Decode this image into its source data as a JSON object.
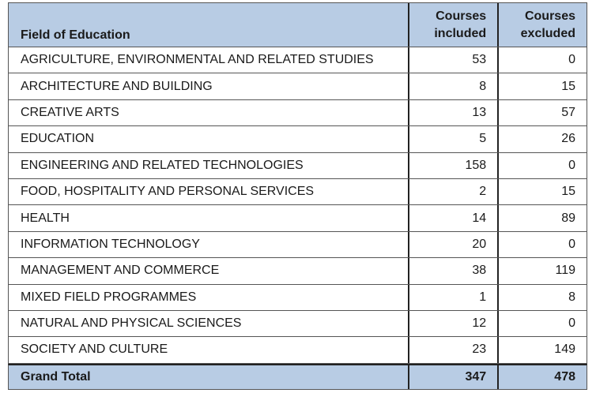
{
  "table": {
    "headers": {
      "field": "Field of Education",
      "included": "Courses\nincluded",
      "excluded": "Courses\nexcluded"
    },
    "rows": [
      {
        "field": "AGRICULTURE, ENVIRONMENTAL AND RELATED STUDIES",
        "included": "53",
        "excluded": "0"
      },
      {
        "field": "ARCHITECTURE AND BUILDING",
        "included": "8",
        "excluded": "15"
      },
      {
        "field": "CREATIVE ARTS",
        "included": "13",
        "excluded": "57"
      },
      {
        "field": "EDUCATION",
        "included": "5",
        "excluded": "26"
      },
      {
        "field": "ENGINEERING AND RELATED TECHNOLOGIES",
        "included": "158",
        "excluded": "0"
      },
      {
        "field": "FOOD, HOSPITALITY AND PERSONAL SERVICES",
        "included": "2",
        "excluded": "15"
      },
      {
        "field": "HEALTH",
        "included": "14",
        "excluded": "89"
      },
      {
        "field": "INFORMATION TECHNOLOGY",
        "included": "20",
        "excluded": "0"
      },
      {
        "field": "MANAGEMENT AND COMMERCE",
        "included": "38",
        "excluded": "119"
      },
      {
        "field": "MIXED FIELD PROGRAMMES",
        "included": "1",
        "excluded": "8"
      },
      {
        "field": "NATURAL AND PHYSICAL SCIENCES",
        "included": "12",
        "excluded": "0"
      },
      {
        "field": "SOCIETY AND CULTURE",
        "included": "23",
        "excluded": "149"
      }
    ],
    "total": {
      "label": "Grand Total",
      "included": "347",
      "excluded": "478"
    }
  },
  "colors": {
    "header_bg": "#b8cce4",
    "border": "#555555"
  }
}
